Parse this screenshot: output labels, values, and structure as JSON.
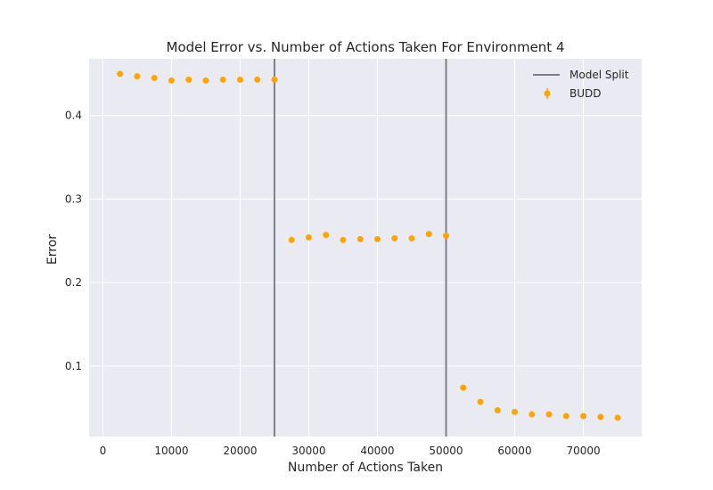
{
  "chart_data": {
    "type": "scatter",
    "title": "Model Error vs. Number of Actions Taken For Environment 4",
    "xlabel": "Number of Actions Taken",
    "ylabel": "Error",
    "xlim": [
      -2000,
      78500
    ],
    "ylim": [
      0.0155,
      0.468
    ],
    "xticks": [
      0,
      10000,
      20000,
      30000,
      40000,
      50000,
      60000,
      70000
    ],
    "yticks": [
      0.1,
      0.2,
      0.3,
      0.4
    ],
    "xtick_labels": [
      "0",
      "10000",
      "20000",
      "30000",
      "40000",
      "50000",
      "60000",
      "70000"
    ],
    "ytick_labels": [
      "0.1",
      "0.2",
      "0.3",
      "0.4"
    ],
    "grid": true,
    "legend_position": "top-right",
    "vlines": {
      "name": "Model Split",
      "color": "#808080",
      "x": [
        25000,
        50000
      ]
    },
    "series": [
      {
        "name": "BUDD",
        "color": "#FFA500",
        "x": [
          2500,
          5000,
          7500,
          10000,
          12500,
          15000,
          17500,
          20000,
          22500,
          25000,
          27500,
          30000,
          32500,
          35000,
          37500,
          40000,
          42500,
          45000,
          47500,
          50000,
          52500,
          55000,
          57500,
          60000,
          62500,
          65000,
          67500,
          70000,
          72500,
          75000
        ],
        "y": [
          0.45,
          0.447,
          0.445,
          0.442,
          0.443,
          0.442,
          0.443,
          0.443,
          0.443,
          0.443,
          0.251,
          0.254,
          0.257,
          0.251,
          0.252,
          0.252,
          0.253,
          0.253,
          0.258,
          0.256,
          0.074,
          0.057,
          0.047,
          0.045,
          0.042,
          0.042,
          0.04,
          0.04,
          0.039,
          0.038
        ]
      }
    ]
  }
}
